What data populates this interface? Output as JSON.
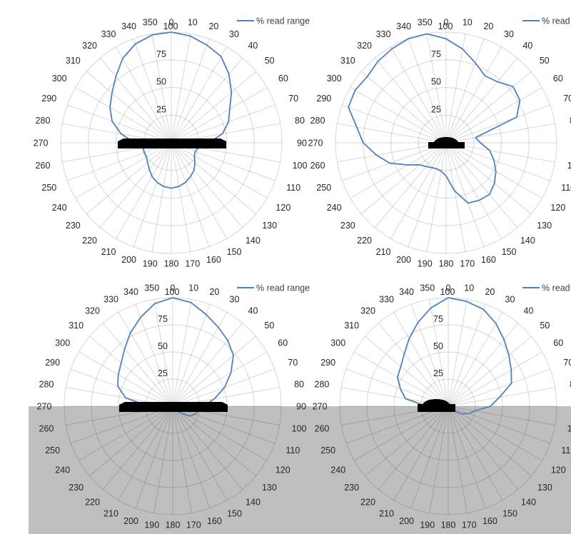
{
  "legend": {
    "label": "% read range"
  },
  "colors": {
    "curve": "#4F81BD",
    "grid_line_rgba": "rgba(0,0,0,0.155)",
    "label_text": "#262626",
    "ground_fill": "#BFBFBF",
    "tag_fill": "#000000",
    "page_background": "#FFFFFF"
  },
  "axes": {
    "angle_step_deg": 10,
    "angles_deg": [
      0,
      10,
      20,
      30,
      40,
      50,
      60,
      70,
      80,
      90,
      100,
      110,
      120,
      130,
      140,
      150,
      160,
      170,
      180,
      190,
      200,
      210,
      220,
      230,
      240,
      250,
      260,
      270,
      280,
      290,
      300,
      310,
      320,
      330,
      340,
      350
    ],
    "angle_labels": [
      "0",
      "10",
      "20",
      "30",
      "40",
      "50",
      "60",
      "70",
      "80",
      "90",
      "100",
      "110",
      "120",
      "130",
      "140",
      "150",
      "160",
      "170",
      "180",
      "190",
      "200",
      "210",
      "220",
      "230",
      "240",
      "250",
      "260",
      "270",
      "280",
      "290",
      "300",
      "310",
      "320",
      "330",
      "340",
      "350"
    ],
    "radius_labels": [
      "25",
      "50",
      "75",
      "100"
    ],
    "radius_ticks": [
      25,
      50,
      75,
      100
    ],
    "radius_max": 100
  },
  "chart_data": [
    {
      "type": "radar",
      "position": "top-left",
      "legend": "% read range",
      "ground_shaded": false,
      "tag_style": "wide-flat-slab",
      "series": [
        {
          "name": "% read range",
          "values": [
            100,
            98,
            94,
            90,
            81,
            71,
            61,
            55,
            47,
            34,
            25,
            23,
            24,
            28,
            32,
            35,
            38,
            40,
            41,
            40,
            38,
            35,
            31,
            28,
            26,
            26,
            26,
            33,
            46,
            57,
            64,
            70,
            78,
            88,
            95,
            99
          ]
        }
      ]
    },
    {
      "type": "radar",
      "position": "top-right",
      "legend": "% read range",
      "ground_shaded": false,
      "tag_style": "small-domed-tag",
      "series": [
        {
          "name": "% read range",
          "values": [
            94,
            86,
            77,
            70,
            72,
            79,
            77,
            68,
            27,
            31,
            40,
            46,
            52,
            57,
            61,
            60,
            58,
            44,
            30,
            26,
            25,
            26,
            28,
            31,
            40,
            54,
            64,
            75,
            82,
            94,
            95,
            93,
            96,
            98,
            100,
            100
          ]
        }
      ]
    },
    {
      "type": "radar",
      "position": "bottom-left",
      "legend": "% read range",
      "ground_shaded": true,
      "tag_style": "wide-flat-slab",
      "series": [
        {
          "name": "% read range",
          "values": [
            100,
            97,
            90,
            84,
            79,
            73,
            62,
            51,
            39,
            28,
            24,
            22,
            18,
            10,
            4,
            3,
            3,
            3,
            3,
            3,
            3,
            3,
            3,
            3,
            3,
            4,
            6,
            22,
            44,
            54,
            58,
            62,
            69,
            78,
            87,
            96
          ]
        }
      ]
    },
    {
      "type": "radar",
      "position": "bottom-right",
      "legend": "% read range",
      "ground_shaded": true,
      "tag_style": "small-domed-tag",
      "series": [
        {
          "name": "% read range",
          "values": [
            100,
            98,
            95,
            88,
            80,
            73,
            67,
            62,
            48,
            39,
            25,
            20,
            14,
            6,
            4,
            4,
            4,
            4,
            4,
            4,
            4,
            4,
            4,
            4,
            4,
            5,
            8,
            20,
            40,
            47,
            54,
            57,
            63,
            72,
            82,
            92
          ]
        }
      ]
    }
  ]
}
